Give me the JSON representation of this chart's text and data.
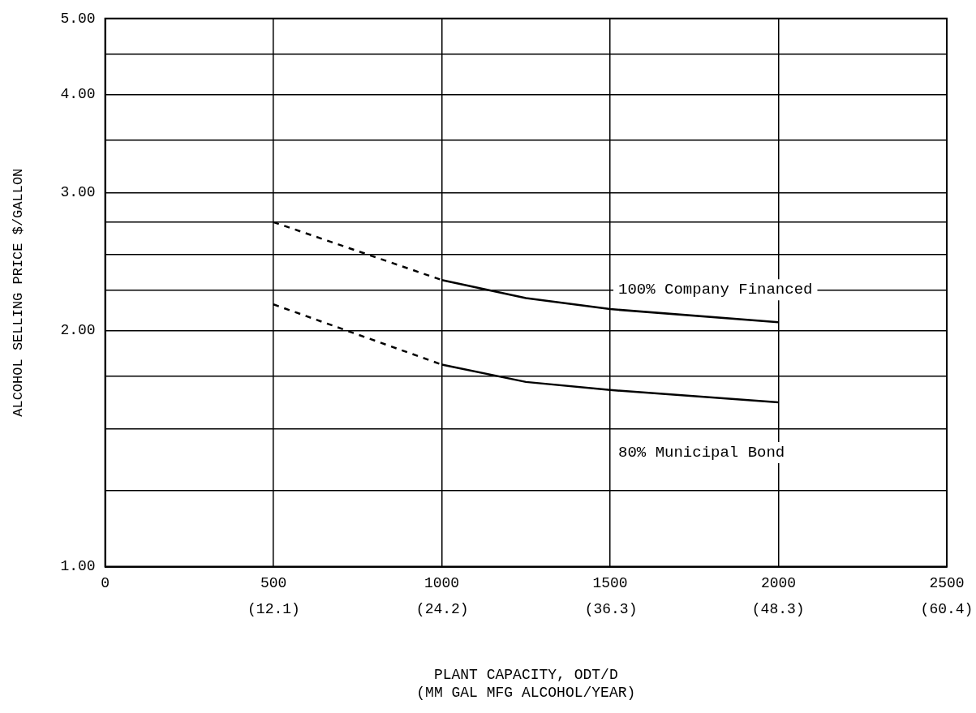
{
  "chart_data": {
    "type": "line",
    "xlabel": "PLANT CAPACITY, ODT/D",
    "x2label": "(MM GAL MFG ALCOHOL/YEAR)",
    "x2lim": [
      0,
      60.4
    ],
    "x2ticks": [
      {
        "value": 12.1,
        "label": "(12.1)"
      },
      {
        "value": 24.2,
        "label": "(24.2)"
      },
      {
        "value": 36.3,
        "label": "(36.3)"
      },
      {
        "value": 48.3,
        "label": "(48.3)"
      },
      {
        "value": 60.4,
        "label": "(60.4)"
      }
    ],
    "ylabel": "ALCOHOL SELLING PRICE $/GALLON",
    "series": [
      {
        "color": "#000000",
        "line_style": "dashed",
        "x": [
          500,
          1000
        ],
        "values": [
          2.75,
          2.32
        ]
      },
      {
        "name": "100% Company Financed",
        "color": "#000000",
        "line_style": "solid",
        "x": [
          1000,
          1250,
          1500,
          2000
        ],
        "values": [
          2.32,
          2.2,
          2.13,
          2.05
        ]
      },
      {
        "color": "#000000",
        "line_style": "dashed",
        "x": [
          500,
          1000
        ],
        "values": [
          2.16,
          1.81
        ]
      },
      {
        "name": "80% Municipal Bond",
        "color": "#000000",
        "line_style": "solid",
        "x": [
          1000,
          1250,
          1500,
          2000
        ],
        "values": [
          1.81,
          1.72,
          1.68,
          1.62
        ]
      }
    ],
    "xlim": [
      0,
      2500
    ],
    "xticks": [
      0,
      500,
      1000,
      1500,
      2000,
      2500
    ],
    "ylim": [
      1,
      5
    ],
    "yticks": [
      {
        "value": 1,
        "label": "1.00"
      },
      {
        "value": 1.25,
        "label": null
      },
      {
        "value": 1.5,
        "label": null
      },
      {
        "value": 1.75,
        "label": null
      },
      {
        "value": 2,
        "label": "2.00"
      },
      {
        "value": 2.25,
        "label": null
      },
      {
        "value": 2.5,
        "label": null
      },
      {
        "value": 2.75,
        "label": null
      },
      {
        "value": 3,
        "label": "3.00"
      },
      {
        "value": 3.5,
        "label": null
      },
      {
        "value": 4,
        "label": "4.00"
      },
      {
        "value": 4.5,
        "label": null
      },
      {
        "value": 5,
        "label": "5.00"
      }
    ],
    "log": "y",
    "grid": true,
    "legend": false,
    "marker": "none"
  }
}
